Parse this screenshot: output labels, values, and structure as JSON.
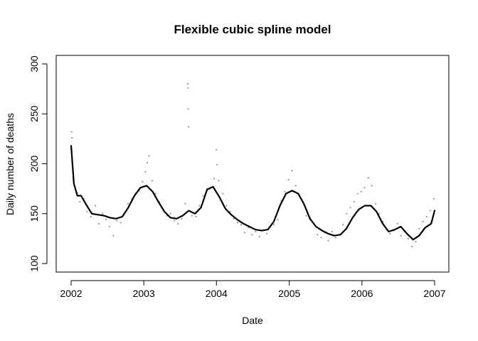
{
  "chart_data": {
    "type": "scatter",
    "title": "Flexible cubic spline model",
    "xlabel": "Date",
    "ylabel": "Daily number of deaths",
    "xlim": [
      "2002-01-01",
      "2007-01-01"
    ],
    "ylim": [
      100,
      300
    ],
    "x_ticks": [
      "2002",
      "2003",
      "2004",
      "2005",
      "2006",
      "2007"
    ],
    "y_ticks": [
      "100",
      "150",
      "200",
      "250",
      "300"
    ],
    "grid": false,
    "legend": "none",
    "point_color": "#999999",
    "line_color": "#000000",
    "series": [
      {
        "kind": "line",
        "x": [
          "2002-01-01",
          "2002-01-15",
          "2002-02-01",
          "2002-02-20",
          "2002-03-15",
          "2002-04-15",
          "2002-05-15",
          "2002-06-15",
          "2002-07-15",
          "2002-08-15",
          "2002-09-15",
          "2002-10-15",
          "2002-11-15",
          "2002-12-15",
          "2003-01-15",
          "2003-02-15",
          "2003-03-15",
          "2003-04-15",
          "2003-05-15",
          "2003-06-15",
          "2003-07-15",
          "2003-08-15",
          "2003-09-15",
          "2003-10-15",
          "2003-11-15",
          "2003-12-15",
          "2004-01-15",
          "2004-02-15",
          "2004-03-15",
          "2004-04-15",
          "2004-05-15",
          "2004-06-15",
          "2004-07-15",
          "2004-08-15",
          "2004-09-15",
          "2004-10-15",
          "2004-11-15",
          "2004-12-15",
          "2005-01-15",
          "2005-02-15",
          "2005-03-15",
          "2005-04-15",
          "2005-05-15",
          "2005-06-15",
          "2005-07-15",
          "2005-08-15",
          "2005-09-15",
          "2005-10-15",
          "2005-11-15",
          "2005-12-15",
          "2006-01-15",
          "2006-02-15",
          "2006-03-15",
          "2006-04-15",
          "2006-05-15",
          "2006-06-15",
          "2006-07-15",
          "2006-08-15",
          "2006-09-15",
          "2006-10-15",
          "2006-11-15",
          "2006-12-15",
          "2007-01-01"
        ],
        "y": [
          218,
          180,
          168,
          168,
          160,
          150,
          149,
          148,
          146,
          145,
          147,
          156,
          168,
          176,
          178,
          172,
          162,
          152,
          146,
          145,
          148,
          153,
          150,
          156,
          174,
          177,
          167,
          155,
          149,
          144,
          140,
          137,
          134,
          133,
          134,
          142,
          158,
          170,
          173,
          170,
          160,
          145,
          137,
          133,
          130,
          128,
          129,
          135,
          146,
          154,
          158,
          158,
          152,
          140,
          132,
          134,
          137,
          130,
          124,
          128,
          136,
          140,
          153
        ]
      },
      {
        "kind": "points",
        "x": [
          "2002-01-03",
          "2002-01-05",
          "2002-01-08",
          "2002-01-12",
          "2002-02-01",
          "2002-02-14",
          "2002-03-05",
          "2002-03-22",
          "2002-04-10",
          "2002-05-02",
          "2002-05-20",
          "2002-06-08",
          "2002-06-25",
          "2002-07-12",
          "2002-08-01",
          "2002-08-20",
          "2002-09-07",
          "2002-09-25",
          "2002-10-14",
          "2002-11-02",
          "2002-11-20",
          "2002-12-08",
          "2002-12-26",
          "2003-01-10",
          "2003-01-18",
          "2003-01-27",
          "2003-02-12",
          "2003-03-01",
          "2003-03-20",
          "2003-04-08",
          "2003-04-27",
          "2003-05-16",
          "2003-06-04",
          "2003-06-22",
          "2003-07-10",
          "2003-07-28",
          "2003-08-10",
          "2003-08-11",
          "2003-08-12",
          "2003-08-14",
          "2003-09-01",
          "2003-09-20",
          "2003-10-08",
          "2003-10-26",
          "2003-11-14",
          "2003-12-02",
          "2003-12-20",
          "2004-01-01",
          "2004-01-05",
          "2004-01-12",
          "2004-02-02",
          "2004-02-20",
          "2004-03-10",
          "2004-03-28",
          "2004-04-16",
          "2004-05-04",
          "2004-05-22",
          "2004-06-10",
          "2004-06-28",
          "2004-07-16",
          "2004-08-04",
          "2004-08-22",
          "2004-09-10",
          "2004-09-28",
          "2004-10-16",
          "2004-11-04",
          "2004-11-22",
          "2004-12-10",
          "2004-12-28",
          "2005-01-14",
          "2005-02-02",
          "2005-02-20",
          "2005-03-10",
          "2005-03-28",
          "2005-04-16",
          "2005-05-04",
          "2005-05-22",
          "2005-06-10",
          "2005-06-28",
          "2005-07-16",
          "2005-08-04",
          "2005-08-22",
          "2005-09-10",
          "2005-09-28",
          "2005-10-16",
          "2005-11-04",
          "2005-11-22",
          "2005-12-10",
          "2005-12-28",
          "2006-01-14",
          "2006-02-02",
          "2006-02-20",
          "2006-03-10",
          "2006-03-28",
          "2006-04-16",
          "2006-05-04",
          "2006-05-22",
          "2006-06-10",
          "2006-06-28",
          "2006-07-16",
          "2006-08-04",
          "2006-08-22",
          "2006-09-10",
          "2006-09-28",
          "2006-10-16",
          "2006-11-04",
          "2006-11-22",
          "2006-12-10",
          "2006-12-28"
        ],
        "y": [
          232,
          226,
          200,
          185,
          171,
          162,
          165,
          152,
          147,
          158,
          140,
          150,
          144,
          137,
          128,
          143,
          141,
          150,
          160,
          165,
          170,
          173,
          182,
          192,
          201,
          208,
          183,
          170,
          162,
          155,
          148,
          150,
          143,
          140,
          145,
          160,
          280,
          276,
          255,
          237,
          148,
          147,
          158,
          168,
          175,
          176,
          185,
          214,
          199,
          183,
          170,
          158,
          152,
          145,
          141,
          139,
          131,
          136,
          129,
          132,
          127,
          133,
          130,
          137,
          139,
          144,
          163,
          172,
          184,
          193,
          178,
          169,
          162,
          148,
          144,
          140,
          129,
          126,
          131,
          123,
          132,
          126,
          129,
          139,
          150,
          156,
          162,
          170,
          172,
          176,
          186,
          178,
          160,
          150,
          142,
          134,
          130,
          133,
          140,
          128,
          132,
          125,
          117,
          122,
          135,
          142,
          147,
          153,
          165
        ]
      }
    ]
  }
}
